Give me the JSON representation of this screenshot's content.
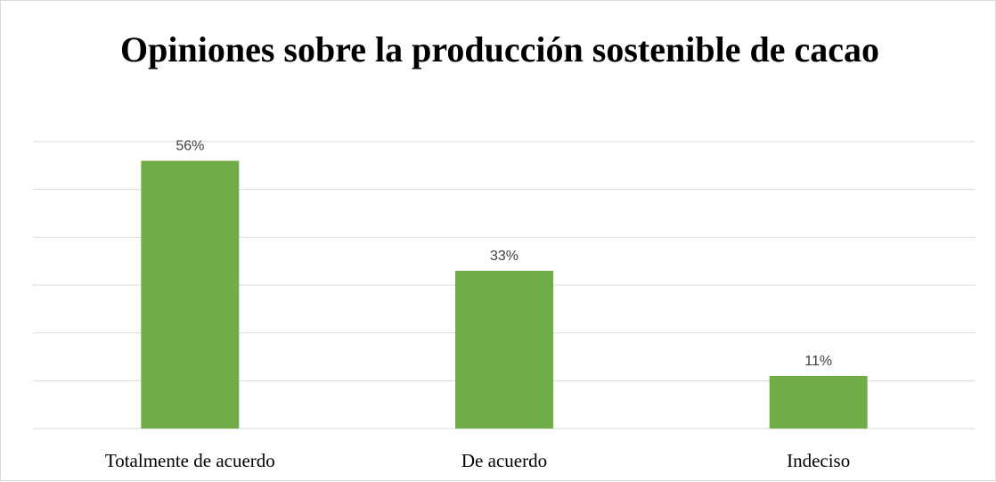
{
  "chart_data": {
    "type": "bar",
    "title": "Opiniones sobre la producción sostenible de cacao",
    "xlabel": "",
    "ylabel": "",
    "categories": [
      "Totalmente de acuerdo",
      "De acuerdo",
      "Indeciso"
    ],
    "values": [
      56,
      33,
      11
    ],
    "data_labels": [
      "56%",
      "33%",
      "11%"
    ],
    "ylim": [
      0,
      60
    ],
    "grid": true,
    "legend": "none",
    "bar_color": "#70ad47"
  }
}
